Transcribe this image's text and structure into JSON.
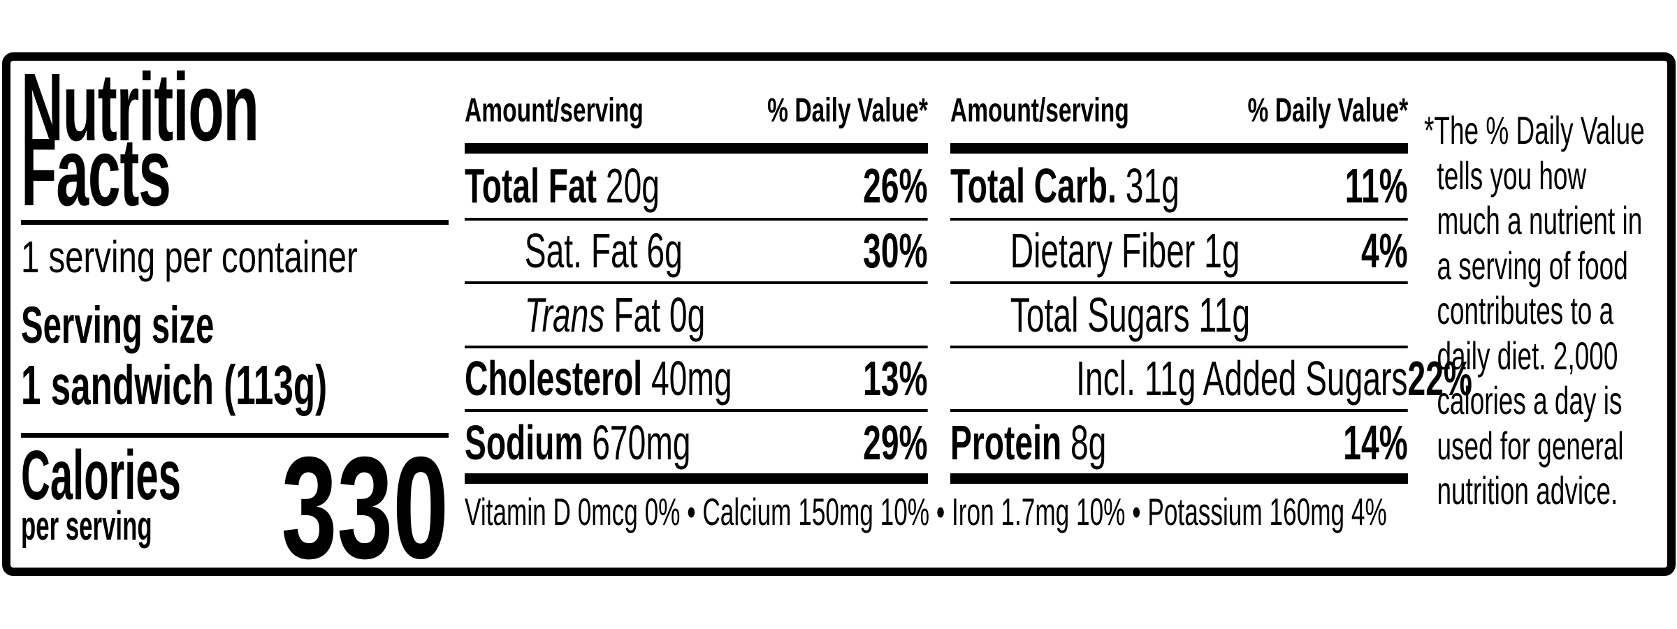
{
  "label": {
    "title_line1": "Nutrition",
    "title_line2": "Facts",
    "servings_per_container": "1 serving per container",
    "serving_size_label": "Serving size",
    "serving_size_value": "1 sandwich (113g)",
    "calories_label": "Calories",
    "calories_sublabel": "per serving",
    "calories_value": "330"
  },
  "columns": [
    {
      "amount_header": "Amount/serving",
      "dv_header": "% Daily Value*",
      "rows": [
        {
          "name": "Total Fat",
          "amount": "20g",
          "dv": "26%"
        },
        {
          "name": "Sat. Fat",
          "amount": "6g",
          "dv": "30%"
        },
        {
          "name_italic": "Trans",
          "name_rest": "Fat",
          "amount": "0g",
          "dv": ""
        },
        {
          "name": "Cholesterol",
          "amount": "40mg",
          "dv": "13%"
        },
        {
          "name": "Sodium",
          "amount": "670mg",
          "dv": "29%"
        }
      ]
    },
    {
      "amount_header": "Amount/serving",
      "dv_header": "% Daily Value*",
      "rows": [
        {
          "name": "Total Carb.",
          "amount": "31g",
          "dv": "11%"
        },
        {
          "name": "Dietary Fiber",
          "amount": "1g",
          "dv": "4%"
        },
        {
          "name": "Total Sugars",
          "amount": "11g",
          "dv": ""
        },
        {
          "name": "Incl. 11g Added Sugars",
          "amount": "",
          "dv": "22%"
        },
        {
          "name": "Protein",
          "amount": "8g",
          "dv": "14%"
        }
      ]
    }
  ],
  "micronutrients": {
    "display": "Vitamin D 0mcg 0% • Calcium 150mg 10% • Iron 1.7mg 10% • Potassium 160mg 4%",
    "items": [
      {
        "name": "Vitamin D",
        "amount": "0mcg",
        "dv": "0%"
      },
      {
        "name": "Calcium",
        "amount": "150mg",
        "dv": "10%"
      },
      {
        "name": "Iron",
        "amount": "1.7mg",
        "dv": "10%"
      },
      {
        "name": "Potassium",
        "amount": "160mg",
        "dv": "4%"
      }
    ]
  },
  "footnote": {
    "text": "*The % Daily Value tells you how much a nutrient in a serving of food contributes to a daily diet. 2,000 calories a day is used for general nutrition advice.",
    "lines": [
      "*The % Daily Value",
      "tells you how",
      "much a nutrient in",
      "a serving of food",
      "contributes to a",
      "daily diet. 2,000",
      "calories a day is",
      "used for general",
      "nutrition advice."
    ]
  }
}
